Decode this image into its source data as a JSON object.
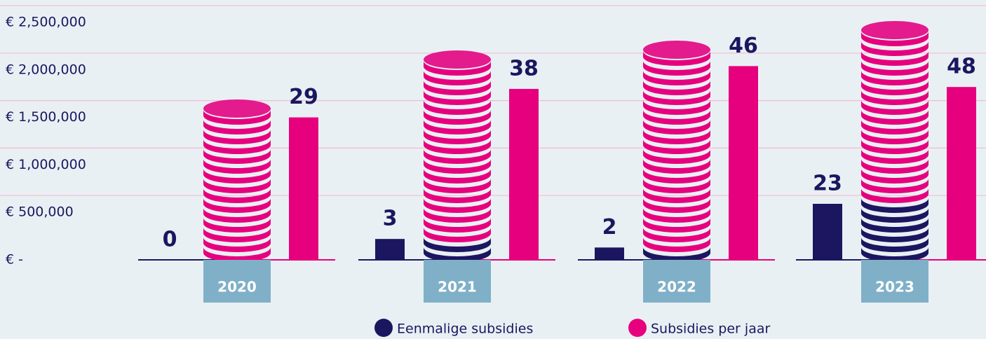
{
  "chart_data": {
    "type": "bar",
    "categories": [
      "2020",
      "2021",
      "2022",
      "2023"
    ],
    "series": [
      {
        "name": "Eenmalige subsidies",
        "color": "#1c1660",
        "values": [
          0,
          220000,
          130000,
          590000
        ],
        "counts": [
          0,
          3,
          2,
          23
        ]
      },
      {
        "name": "Subsidies per jaar",
        "color": "#e6007e",
        "values": [
          1500000,
          1800000,
          2040000,
          1820000
        ],
        "counts": [
          29,
          38,
          46,
          48
        ]
      }
    ],
    "ylim": [
      0,
      2500000
    ],
    "yticks": [
      {
        "value": 0,
        "label": "€ -"
      },
      {
        "value": 500000,
        "label": "€ 500,000"
      },
      {
        "value": 1000000,
        "label": "€ 1,000,000"
      },
      {
        "value": 1500000,
        "label": "€ 1,500,000"
      },
      {
        "value": 2000000,
        "label": "€ 2,000,000"
      },
      {
        "value": 2500000,
        "label": "€ 2,500,000"
      }
    ],
    "grid": true
  }
}
